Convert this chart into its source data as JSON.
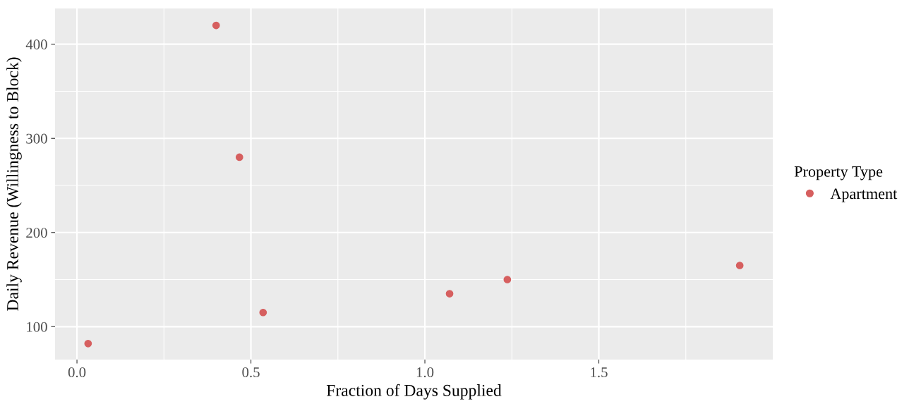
{
  "chart_data": {
    "type": "scatter",
    "xlabel": "Fraction of Days Supplied",
    "ylabel": "Daily Revenue (Willingness to Block)",
    "legend_title": "Property Type",
    "x": [
      0.032,
      0.4,
      0.467,
      0.535,
      1.071,
      1.237,
      1.905
    ],
    "series": [
      {
        "name": "Apartment",
        "color": "#d65f5f",
        "values": [
          82,
          420,
          280,
          115,
          135,
          150,
          165
        ]
      }
    ],
    "xlim": [
      -0.063,
      2.0
    ],
    "ylim": [
      65,
      438
    ],
    "xticks": [
      {
        "value": 0,
        "label": "0.0"
      },
      0.5,
      {
        "value": 1,
        "label": "1.0"
      },
      1.5
    ],
    "yticks": [
      100,
      200,
      300,
      400
    ],
    "grid": true,
    "legend": "right",
    "marker": "circle"
  }
}
